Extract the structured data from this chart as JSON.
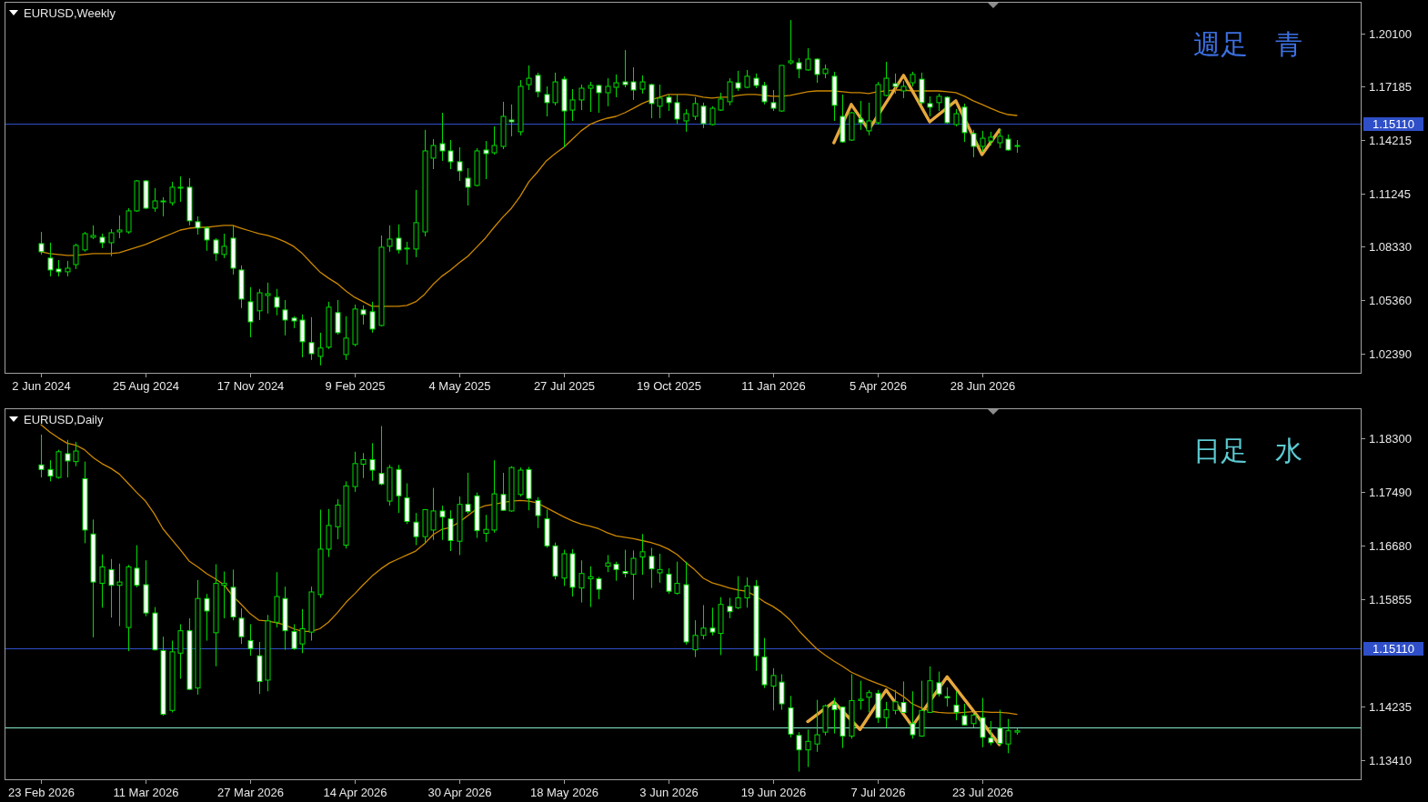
{
  "chart_data": [
    {
      "type": "candlestick",
      "title": "EURUSD,Weekly",
      "categories": [
        "2 Jun 2024",
        null,
        null,
        null,
        null,
        null,
        null,
        null,
        null,
        null,
        null,
        null,
        "25 Aug 2024",
        null,
        null,
        null,
        null,
        null,
        null,
        null,
        null,
        null,
        null,
        null,
        "17 Nov 2024",
        null,
        null,
        null,
        null,
        null,
        null,
        null,
        null,
        null,
        null,
        null,
        "9 Feb 2025",
        null,
        null,
        null,
        null,
        null,
        null,
        null,
        null,
        null,
        null,
        null,
        "4 May 2025",
        null,
        null,
        null,
        null,
        null,
        null,
        null,
        null,
        null,
        null,
        null,
        "27 Jul 2025",
        null,
        null,
        null,
        null,
        null,
        null,
        null,
        null,
        null,
        null,
        null,
        "19 Oct 2025",
        null,
        null,
        null,
        null,
        null,
        null,
        null,
        null,
        null,
        null,
        null,
        "11 Jan 2026",
        null,
        null,
        null,
        null,
        null,
        null,
        null,
        null,
        null,
        null,
        null,
        "5 Apr 2026",
        null,
        null,
        null,
        null,
        null,
        null,
        null,
        null,
        null,
        null,
        null,
        "28 Jun 2026",
        null,
        null,
        null,
        null
      ],
      "ohlc": [
        [
          1.0848,
          1.0913,
          1.0788,
          1.0803
        ],
        [
          1.0768,
          1.0853,
          1.0667,
          1.0702
        ],
        [
          1.0707,
          1.0757,
          1.0667,
          1.0692
        ],
        [
          1.0692,
          1.0752,
          1.0667,
          1.0712
        ],
        [
          1.0732,
          1.0848,
          1.0707,
          1.0838
        ],
        [
          1.0813,
          1.0913,
          1.0803,
          1.0903
        ],
        [
          1.0883,
          1.0949,
          1.0873,
          1.0893
        ],
        [
          1.0883,
          1.0903,
          1.0823,
          1.0853
        ],
        [
          1.0853,
          1.0928,
          1.0778,
          1.0908
        ],
        [
          1.0913,
          1.1004,
          1.0878,
          1.0923
        ],
        [
          1.0913,
          1.1044,
          1.0903,
          1.1029
        ],
        [
          1.1029,
          1.12,
          1.1024,
          1.1195
        ],
        [
          1.1195,
          1.12,
          1.1039,
          1.1044
        ],
        [
          1.1044,
          1.1155,
          1.1024,
          1.1084
        ],
        [
          1.1079,
          1.1105,
          1.0999,
          1.1084
        ],
        [
          1.1074,
          1.119,
          1.1059,
          1.116
        ],
        [
          1.1155,
          1.122,
          1.1079,
          1.116
        ],
        [
          1.116,
          1.121,
          1.0949,
          1.0974
        ],
        [
          1.0969,
          1.0999,
          1.0898,
          1.0934
        ],
        [
          1.0934,
          1.0944,
          1.0808,
          1.0868
        ],
        [
          1.0868,
          1.0878,
          1.0752,
          1.0793
        ],
        [
          1.0788,
          1.0903,
          1.0768,
          1.0833
        ],
        [
          1.0878,
          1.0949,
          1.0677,
          1.0712
        ],
        [
          1.0702,
          1.0727,
          1.0491,
          1.0541
        ],
        [
          1.0526,
          1.0607,
          1.033,
          1.0415
        ],
        [
          1.0476,
          1.0597,
          1.0425,
          1.0576
        ],
        [
          1.0561,
          1.0632,
          1.0461,
          1.0571
        ],
        [
          1.0551,
          1.0597,
          1.0451,
          1.0496
        ],
        [
          1.0481,
          1.0536,
          1.034,
          1.0425
        ],
        [
          1.0436,
          1.0446,
          1.038,
          1.042
        ],
        [
          1.0425,
          1.0456,
          1.0219,
          1.0305
        ],
        [
          1.03,
          1.0441,
          1.0204,
          1.0239
        ],
        [
          1.0224,
          1.0355,
          1.0174,
          1.027
        ],
        [
          1.0275,
          1.0526,
          1.0265,
          1.0496
        ],
        [
          1.0466,
          1.0536,
          1.0345,
          1.0355
        ],
        [
          1.0234,
          1.0446,
          1.0204,
          1.0325
        ],
        [
          1.029,
          1.0511,
          1.028,
          1.0486
        ],
        [
          1.0481,
          1.0506,
          1.04,
          1.0456
        ],
        [
          1.0471,
          1.0526,
          1.0355,
          1.0375
        ],
        [
          1.0395,
          1.0893,
          1.039,
          1.0828
        ],
        [
          1.0833,
          1.0949,
          1.0803,
          1.0873
        ],
        [
          1.0878,
          1.0954,
          1.0793,
          1.0813
        ],
        [
          1.0823,
          1.0858,
          1.0732,
          1.0818
        ],
        [
          1.0818,
          1.1145,
          1.0773,
          1.0964
        ],
        [
          1.0913,
          1.1477,
          1.0888,
          1.1361
        ],
        [
          1.1321,
          1.1426,
          1.126,
          1.1391
        ],
        [
          1.1401,
          1.1572,
          1.1306,
          1.1361
        ],
        [
          1.1361,
          1.1421,
          1.126,
          1.1301
        ],
        [
          1.1301,
          1.1381,
          1.1195,
          1.125
        ],
        [
          1.121,
          1.1265,
          1.1059,
          1.116
        ],
        [
          1.117,
          1.1376,
          1.1165,
          1.1361
        ],
        [
          1.1366,
          1.1416,
          1.1205,
          1.1346
        ],
        [
          1.1351,
          1.1497,
          1.1341,
          1.1391
        ],
        [
          1.1386,
          1.1633,
          1.1371,
          1.1552
        ],
        [
          1.1532,
          1.1618,
          1.1442,
          1.1522
        ],
        [
          1.1467,
          1.1753,
          1.1447,
          1.1718
        ],
        [
          1.1728,
          1.1834,
          1.1698,
          1.1763
        ],
        [
          1.1779,
          1.1794,
          1.1658,
          1.1688
        ],
        [
          1.1673,
          1.1718,
          1.1552,
          1.1628
        ],
        [
          1.1628,
          1.1794,
          1.1613,
          1.1743
        ],
        [
          1.1758,
          1.1774,
          1.1381,
          1.1582
        ],
        [
          1.1587,
          1.1703,
          1.1527,
          1.1643
        ],
        [
          1.1643,
          1.1728,
          1.1587,
          1.1708
        ],
        [
          1.1708,
          1.1743,
          1.1577,
          1.1723
        ],
        [
          1.1723,
          1.1728,
          1.1572,
          1.1683
        ],
        [
          1.1683,
          1.1763,
          1.1608,
          1.1718
        ],
        [
          1.1713,
          1.1784,
          1.1658,
          1.1738
        ],
        [
          1.1743,
          1.1919,
          1.1713,
          1.1728
        ],
        [
          1.1743,
          1.1824,
          1.1643,
          1.1698
        ],
        [
          1.1703,
          1.1779,
          1.1678,
          1.1743
        ],
        [
          1.1728,
          1.1733,
          1.1542,
          1.1623
        ],
        [
          1.1608,
          1.1728,
          1.1542,
          1.1653
        ],
        [
          1.1658,
          1.1673,
          1.1582,
          1.1628
        ],
        [
          1.1628,
          1.1673,
          1.1512,
          1.1537
        ],
        [
          1.1527,
          1.1592,
          1.1467,
          1.1567
        ],
        [
          1.1552,
          1.1658,
          1.1532,
          1.1623
        ],
        [
          1.1608,
          1.1628,
          1.1487,
          1.1512
        ],
        [
          1.1507,
          1.1608,
          1.1502,
          1.1597
        ],
        [
          1.1587,
          1.1683,
          1.1582,
          1.1648
        ],
        [
          1.1633,
          1.1763,
          1.1613,
          1.1743
        ],
        [
          1.1738,
          1.1804,
          1.1693,
          1.1708
        ],
        [
          1.1713,
          1.1809,
          1.1708,
          1.1774
        ],
        [
          1.1763,
          1.1789,
          1.1708,
          1.1723
        ],
        [
          1.1723,
          1.1743,
          1.1618,
          1.1633
        ],
        [
          1.1628,
          1.1698,
          1.1582,
          1.1597
        ],
        [
          1.1582,
          1.1834,
          1.1577,
          1.1834
        ],
        [
          1.1849,
          1.2085,
          1.1839,
          1.1859
        ],
        [
          1.1849,
          1.1874,
          1.1763,
          1.1814
        ],
        [
          1.1809,
          1.1929,
          1.1804,
          1.1869
        ],
        [
          1.1869,
          1.1874,
          1.1738,
          1.1784
        ],
        [
          1.1789,
          1.1839,
          1.1763,
          1.1814
        ],
        [
          1.1774,
          1.1799,
          1.1527,
          1.1613
        ],
        [
          1.1552,
          1.1673,
          1.1406,
          1.1411
        ],
        [
          1.1421,
          1.1577,
          1.1416,
          1.1572
        ],
        [
          1.1537,
          1.1638,
          1.1477,
          1.1517
        ],
        [
          1.1472,
          1.1628,
          1.1447,
          1.1527
        ],
        [
          1.1517,
          1.1743,
          1.1507,
          1.1728
        ],
        [
          1.1668,
          1.1854,
          1.1663,
          1.1763
        ],
        [
          1.1733,
          1.1789,
          1.1678,
          1.1718
        ],
        [
          1.1693,
          1.1748,
          1.1653,
          1.1718
        ],
        [
          1.1738,
          1.1799,
          1.1718,
          1.1784
        ],
        [
          1.1758,
          1.1794,
          1.1618,
          1.1628
        ],
        [
          1.1623,
          1.1663,
          1.1552,
          1.1603
        ],
        [
          1.1628,
          1.1678,
          1.1582,
          1.1663
        ],
        [
          1.1658,
          1.1663,
          1.1512,
          1.1517
        ],
        [
          1.1507,
          1.1592,
          1.1497,
          1.1567
        ],
        [
          1.1603,
          1.1623,
          1.1411,
          1.1462
        ],
        [
          1.1457,
          1.1477,
          1.1326,
          1.1386
        ],
        [
          1.1386,
          1.1472,
          1.1356,
          1.1431
        ],
        [
          1.1416,
          1.1467,
          1.1391,
          1.1437
        ],
        [
          1.1406,
          1.1482,
          1.1376,
          1.1442
        ],
        [
          1.1426,
          1.1452,
          1.1361,
          1.1366
        ],
        [
          1.1391,
          1.1421,
          1.1351,
          1.1386
        ]
      ],
      "series": [
        {
          "type": "line",
          "color": "#cc8800",
          "values": [
            1.0803,
            1.0793,
            1.0788,
            1.0783,
            1.0783,
            1.0788,
            1.0793,
            1.0793,
            1.0793,
            1.0798,
            1.0813,
            1.0828,
            1.0843,
            1.0863,
            1.0883,
            1.0903,
            1.0923,
            1.0933,
            1.0938,
            1.0938,
            1.0944,
            1.0949,
            1.0949,
            1.0933,
            1.0918,
            1.0903,
            1.0893,
            1.0878,
            1.0858,
            1.0833,
            1.0793,
            1.0742,
            1.0692,
            1.0657,
            1.0627,
            1.0586,
            1.0551,
            1.0526,
            1.0501,
            1.0501,
            1.0501,
            1.0501,
            1.0506,
            1.0526,
            1.0566,
            1.0622,
            1.0667,
            1.0702,
            1.0742,
            1.0778,
            1.0828,
            1.0878,
            1.0938,
            1.0994,
            1.1044,
            1.111,
            1.119,
            1.1245,
            1.1306,
            1.1346,
            1.1381,
            1.1426,
            1.1472,
            1.1507,
            1.1527,
            1.1542,
            1.1552,
            1.1572,
            1.1597,
            1.1623,
            1.1643,
            1.1658,
            1.1673,
            1.1673,
            1.1673,
            1.1668,
            1.1658,
            1.1653,
            1.1658,
            1.1658,
            1.1668,
            1.1673,
            1.1673,
            1.1668,
            1.1663,
            1.1663,
            1.1668,
            1.1678,
            1.1688,
            1.1693,
            1.1693,
            1.1693,
            1.1688,
            1.1683,
            1.1683,
            1.1678,
            1.1688,
            1.1693,
            1.1698,
            1.1698,
            1.1693,
            1.1693,
            1.1693,
            1.1693,
            1.1688,
            1.1683,
            1.1663,
            1.1638,
            1.1618,
            1.1597,
            1.1577,
            1.1562,
            1.1557
          ]
        },
        {
          "type": "line",
          "color": "#e6a83c",
          "values": [
            null,
            null,
            null,
            null,
            null,
            null,
            null,
            null,
            null,
            null,
            null,
            null,
            null,
            null,
            null,
            null,
            null,
            null,
            null,
            null,
            null,
            null,
            null,
            null,
            null,
            null,
            null,
            null,
            null,
            null,
            null,
            null,
            null,
            null,
            null,
            null,
            null,
            null,
            null,
            null,
            null,
            null,
            null,
            null,
            null,
            null,
            null,
            null,
            null,
            null,
            null,
            null,
            null,
            null,
            null,
            null,
            null,
            null,
            null,
            null,
            null,
            null,
            null,
            null,
            null,
            null,
            null,
            null,
            null,
            null,
            null,
            null,
            null,
            null,
            null,
            null,
            null,
            null,
            null,
            null,
            null,
            null,
            null,
            null,
            null,
            null,
            null,
            null,
            null,
            null,
            null,
            1.1406,
            null,
            1.1618,
            null,
            1.1477,
            null,
            null,
            null,
            1.1779,
            null,
            null,
            1.1522,
            null,
            null,
            1.1638,
            null,
            null,
            1.1341,
            null,
            1.1477,
            null,
            null
          ]
        }
      ],
      "ylim": [
        1.0128,
        1.2186
      ],
      "yticks": [
        {
          "value": 1.201,
          "label": "1.20100"
        },
        {
          "value": 1.17185,
          "label": "1.17185"
        },
        {
          "value": 1.14215,
          "label": "1.14215"
        },
        {
          "value": 1.11245,
          "label": "1.11245"
        },
        {
          "value": 1.0833,
          "label": "1.08330"
        },
        {
          "value": 1.0536,
          "label": "1.05360"
        },
        {
          "value": 1.0239,
          "label": "1.02390"
        }
      ],
      "ref_lines": [
        {
          "axis": "y",
          "value": 1.1511,
          "label": "1.15110",
          "color": "#2f4fc8"
        }
      ],
      "annotations": [
        "週足　青"
      ]
    },
    {
      "type": "candlestick",
      "title": "EURUSD,Daily",
      "categories": [
        "23 Feb 2026",
        null,
        null,
        null,
        null,
        null,
        null,
        null,
        null,
        null,
        null,
        null,
        "11 Mar 2026",
        null,
        null,
        null,
        null,
        null,
        null,
        null,
        null,
        null,
        null,
        null,
        "27 Mar 2026",
        null,
        null,
        null,
        null,
        null,
        null,
        null,
        null,
        null,
        null,
        null,
        "14 Apr 2026",
        null,
        null,
        null,
        null,
        null,
        null,
        null,
        null,
        null,
        null,
        null,
        "30 Apr 2026",
        null,
        null,
        null,
        null,
        null,
        null,
        null,
        null,
        null,
        null,
        null,
        "18 May 2026",
        null,
        null,
        null,
        null,
        null,
        null,
        null,
        null,
        null,
        null,
        null,
        "3 Jun 2026",
        null,
        null,
        null,
        null,
        null,
        null,
        null,
        null,
        null,
        null,
        null,
        "19 Jun 2026",
        null,
        null,
        null,
        null,
        null,
        null,
        null,
        null,
        null,
        null,
        null,
        "7 Jul 2026",
        null,
        null,
        null,
        null,
        null,
        null,
        null,
        null,
        null,
        null,
        null,
        "23 Jul 2026",
        null,
        null,
        null,
        null
      ],
      "ohlc": [
        [
          1.179,
          1.1836,
          1.1771,
          1.1783
        ],
        [
          1.1783,
          1.1797,
          1.1765,
          1.1773
        ],
        [
          1.1771,
          1.1813,
          1.1769,
          1.181
        ],
        [
          1.1807,
          1.1828,
          1.1771,
          1.1796
        ],
        [
          1.1795,
          1.1825,
          1.1788,
          1.1811
        ],
        [
          1.1769,
          1.1795,
          1.1671,
          1.1691
        ],
        [
          1.1685,
          1.1707,
          1.1528,
          1.1612
        ],
        [
          1.161,
          1.1654,
          1.1573,
          1.1635
        ],
        [
          1.1631,
          1.1647,
          1.1558,
          1.1607
        ],
        [
          1.1607,
          1.164,
          1.1545,
          1.1612
        ],
        [
          1.1543,
          1.1638,
          1.1507,
          1.1635
        ],
        [
          1.1633,
          1.1668,
          1.1604,
          1.1607
        ],
        [
          1.1608,
          1.1645,
          1.156,
          1.1565
        ],
        [
          1.1565,
          1.1574,
          1.1508,
          1.1509
        ],
        [
          1.1508,
          1.1529,
          1.1409,
          1.1411
        ],
        [
          1.1417,
          1.1523,
          1.1414,
          1.1506
        ],
        [
          1.1504,
          1.1548,
          1.1465,
          1.1538
        ],
        [
          1.1538,
          1.1557,
          1.1448,
          1.1449
        ],
        [
          1.1451,
          1.1615,
          1.1441,
          1.1587
        ],
        [
          1.1587,
          1.1594,
          1.1523,
          1.1568
        ],
        [
          1.1535,
          1.1639,
          1.1484,
          1.161
        ],
        [
          1.1607,
          1.1628,
          1.1557,
          1.161
        ],
        [
          1.1604,
          1.1631,
          1.1554,
          1.1559
        ],
        [
          1.1557,
          1.1572,
          1.1518,
          1.1529
        ],
        [
          1.1523,
          1.1548,
          1.15,
          1.1511
        ],
        [
          1.15,
          1.1521,
          1.1442,
          1.1461
        ],
        [
          1.1463,
          1.1562,
          1.1446,
          1.1553
        ],
        [
          1.1551,
          1.1627,
          1.1543,
          1.159
        ],
        [
          1.1587,
          1.1605,
          1.1509,
          1.1538
        ],
        [
          1.1537,
          1.1548,
          1.1509,
          1.1511
        ],
        [
          1.1518,
          1.1571,
          1.1504,
          1.1541
        ],
        [
          1.1536,
          1.1605,
          1.1523,
          1.1597
        ],
        [
          1.1593,
          1.1722,
          1.1588,
          1.1662
        ],
        [
          1.1662,
          1.1723,
          1.165,
          1.1698
        ],
        [
          1.1696,
          1.1738,
          1.1677,
          1.1729
        ],
        [
          1.1668,
          1.1765,
          1.1663,
          1.1758
        ],
        [
          1.1757,
          1.181,
          1.1749,
          1.1792
        ],
        [
          1.1791,
          1.1808,
          1.177,
          1.1798
        ],
        [
          1.1798,
          1.1823,
          1.1766,
          1.1782
        ],
        [
          1.1777,
          1.1849,
          1.1759,
          1.1761
        ],
        [
          1.1735,
          1.179,
          1.1728,
          1.1786
        ],
        [
          1.1783,
          1.179,
          1.1717,
          1.1743
        ],
        [
          1.174,
          1.1762,
          1.17,
          1.1704
        ],
        [
          1.1703,
          1.1717,
          1.1668,
          1.1681
        ],
        [
          1.1681,
          1.1722,
          1.167,
          1.1722
        ],
        [
          1.1691,
          1.1755,
          1.1676,
          1.172
        ],
        [
          1.172,
          1.1728,
          1.1676,
          1.1711
        ],
        [
          1.1708,
          1.1721,
          1.1659,
          1.1675
        ],
        [
          1.1674,
          1.1742,
          1.1653,
          1.173
        ],
        [
          1.173,
          1.1778,
          1.1716,
          1.1719
        ],
        [
          1.1743,
          1.1748,
          1.1679,
          1.169
        ],
        [
          1.1686,
          1.1714,
          1.1673,
          1.1692
        ],
        [
          1.1691,
          1.1797,
          1.1687,
          1.1746
        ],
        [
          1.1745,
          1.1778,
          1.172,
          1.1721
        ],
        [
          1.172,
          1.1788,
          1.1719,
          1.1786
        ],
        [
          1.1745,
          1.1786,
          1.1742,
          1.1782
        ],
        [
          1.1783,
          1.1787,
          1.1721,
          1.1739
        ],
        [
          1.1736,
          1.1741,
          1.1694,
          1.1713
        ],
        [
          1.1708,
          1.1722,
          1.1664,
          1.1667
        ],
        [
          1.1667,
          1.1672,
          1.1616,
          1.1621
        ],
        [
          1.1618,
          1.1661,
          1.1606,
          1.1655
        ],
        [
          1.1655,
          1.1662,
          1.159,
          1.1604
        ],
        [
          1.1603,
          1.1645,
          1.1581,
          1.1625
        ],
        [
          1.1617,
          1.1636,
          1.1574,
          1.162
        ],
        [
          1.1617,
          1.162,
          1.1586,
          1.1601
        ],
        [
          1.1636,
          1.1653,
          1.1627,
          1.1641
        ],
        [
          1.1639,
          1.1643,
          1.1614,
          1.1631
        ],
        [
          1.1628,
          1.1661,
          1.1619,
          1.1625
        ],
        [
          1.1624,
          1.166,
          1.1585,
          1.1648
        ],
        [
          1.165,
          1.1685,
          1.1623,
          1.1658
        ],
        [
          1.1651,
          1.1664,
          1.1603,
          1.1632
        ],
        [
          1.1626,
          1.1655,
          1.1611,
          1.1631
        ],
        [
          1.1624,
          1.1633,
          1.1594,
          1.1598
        ],
        [
          1.1595,
          1.1643,
          1.1593,
          1.161
        ],
        [
          1.1608,
          1.1643,
          1.1517,
          1.1521
        ],
        [
          1.1509,
          1.1554,
          1.1498,
          1.1531
        ],
        [
          1.1531,
          1.1577,
          1.1525,
          1.1542
        ],
        [
          1.1542,
          1.1573,
          1.1531,
          1.1536
        ],
        [
          1.1534,
          1.1589,
          1.1501,
          1.1578
        ],
        [
          1.1575,
          1.1588,
          1.1557,
          1.1567
        ],
        [
          1.1573,
          1.1621,
          1.1571,
          1.1588
        ],
        [
          1.1588,
          1.1619,
          1.1573,
          1.1606
        ],
        [
          1.1606,
          1.1615,
          1.1477,
          1.15
        ],
        [
          1.1498,
          1.1527,
          1.1451,
          1.1456
        ],
        [
          1.1454,
          1.1481,
          1.1417,
          1.147
        ],
        [
          1.146,
          1.1472,
          1.1418,
          1.1427
        ],
        [
          1.1421,
          1.1439,
          1.1376,
          1.1381
        ],
        [
          1.1379,
          1.1384,
          1.1324,
          1.1357
        ],
        [
          1.1357,
          1.1388,
          1.1331,
          1.137
        ],
        [
          1.1366,
          1.1433,
          1.1354,
          1.138
        ],
        [
          1.1384,
          1.1426,
          1.1379,
          1.1424
        ],
        [
          1.1426,
          1.1436,
          1.1382,
          1.1418
        ],
        [
          1.1422,
          1.1423,
          1.136,
          1.1378
        ],
        [
          1.1378,
          1.1472,
          1.1374,
          1.1432
        ],
        [
          1.1432,
          1.1462,
          1.1418,
          1.1434
        ],
        [
          1.1437,
          1.1448,
          1.1414,
          1.1444
        ],
        [
          1.1443,
          1.1448,
          1.1398,
          1.1406
        ],
        [
          1.1406,
          1.143,
          1.1391,
          1.1418
        ],
        [
          1.1417,
          1.1448,
          1.1411,
          1.143
        ],
        [
          1.1429,
          1.1461,
          1.1413,
          1.1414
        ],
        [
          1.1397,
          1.1446,
          1.1374,
          1.138
        ],
        [
          1.1378,
          1.1462,
          1.1377,
          1.1417
        ],
        [
          1.1414,
          1.1484,
          1.1413,
          1.1462
        ],
        [
          1.1459,
          1.1476,
          1.1438,
          1.1442
        ],
        [
          1.1438,
          1.1452,
          1.1423,
          1.1436
        ],
        [
          1.1425,
          1.1446,
          1.1402,
          1.1414
        ],
        [
          1.1409,
          1.1427,
          1.1394,
          1.1395
        ],
        [
          1.1397,
          1.1415,
          1.1391,
          1.141
        ],
        [
          1.1406,
          1.1436,
          1.1361,
          1.1376
        ],
        [
          1.1375,
          1.1401,
          1.1364,
          1.1368
        ],
        [
          1.139,
          1.1418,
          1.1364,
          1.1367
        ],
        [
          1.1366,
          1.1404,
          1.1352,
          1.1386
        ],
        [
          1.1384,
          1.139,
          1.138,
          1.1386
        ]
      ],
      "series": [
        {
          "type": "line",
          "color": "#cc8800",
          "values": [
            1.1851,
            1.184,
            1.1831,
            1.1823,
            1.182,
            1.1813,
            1.1801,
            1.1792,
            1.1785,
            1.1776,
            1.1762,
            1.1748,
            1.1735,
            1.1716,
            1.1693,
            1.1677,
            1.1661,
            1.1644,
            1.1635,
            1.1625,
            1.1617,
            1.1608,
            1.1591,
            1.1578,
            1.1564,
            1.1554,
            1.1553,
            1.155,
            1.1547,
            1.1541,
            1.1537,
            1.1537,
            1.1541,
            1.1551,
            1.1565,
            1.1581,
            1.1594,
            1.1608,
            1.1621,
            1.1632,
            1.1641,
            1.1647,
            1.1653,
            1.1659,
            1.167,
            1.1684,
            1.1692,
            1.1695,
            1.1703,
            1.1713,
            1.1723,
            1.1728,
            1.173,
            1.1733,
            1.1735,
            1.1736,
            1.1735,
            1.1732,
            1.1725,
            1.1718,
            1.1711,
            1.1705,
            1.17,
            1.1697,
            1.1693,
            1.1687,
            1.1682,
            1.168,
            1.1678,
            1.1675,
            1.1672,
            1.1668,
            1.1662,
            1.1654,
            1.1642,
            1.1631,
            1.1618,
            1.1611,
            1.1607,
            1.1603,
            1.16,
            1.1598,
            1.1591,
            1.1582,
            1.1575,
            1.1566,
            1.1554,
            1.1538,
            1.1524,
            1.1511,
            1.1501,
            1.1492,
            1.1484,
            1.1475,
            1.1469,
            1.1463,
            1.1458,
            1.1453,
            1.1446,
            1.1438,
            1.1427,
            1.1421,
            1.1416,
            1.1414,
            1.1413,
            1.1413,
            1.1414,
            1.1415,
            1.1415,
            1.1414,
            1.1414,
            1.1413,
            1.1411
          ]
        },
        {
          "type": "line",
          "color": "#e6a83c",
          "values": [
            null,
            null,
            null,
            null,
            null,
            null,
            null,
            null,
            null,
            null,
            null,
            null,
            null,
            null,
            null,
            null,
            null,
            null,
            null,
            null,
            null,
            null,
            null,
            null,
            null,
            null,
            null,
            null,
            null,
            null,
            null,
            null,
            null,
            null,
            null,
            null,
            null,
            null,
            null,
            null,
            null,
            null,
            null,
            null,
            null,
            null,
            null,
            null,
            null,
            null,
            null,
            null,
            null,
            null,
            null,
            null,
            null,
            null,
            null,
            null,
            null,
            null,
            null,
            null,
            null,
            null,
            null,
            null,
            null,
            null,
            null,
            null,
            null,
            null,
            null,
            null,
            null,
            null,
            null,
            null,
            null,
            null,
            null,
            null,
            null,
            null,
            null,
            null,
            1.14,
            null,
            null,
            1.143,
            null,
            null,
            1.1388,
            null,
            null,
            1.1448,
            null,
            null,
            1.1393,
            null,
            null,
            null,
            1.1468,
            null,
            null,
            null,
            null,
            null,
            1.1365,
            null,
            null
          ]
        }
      ],
      "ylim": [
        1.1311,
        1.1876
      ],
      "yticks": [
        {
          "value": 1.183,
          "label": "1.18300"
        },
        {
          "value": 1.1749,
          "label": "1.17490"
        },
        {
          "value": 1.1668,
          "label": "1.16680"
        },
        {
          "value": 1.15855,
          "label": "1.15855"
        },
        {
          "value": 1.14235,
          "label": "1.14235"
        },
        {
          "value": 1.1341,
          "label": "1.13410"
        }
      ],
      "ref_lines": [
        {
          "axis": "y",
          "value": 1.1511,
          "label": "1.15110",
          "color": "#2f4fc8"
        },
        {
          "axis": "y",
          "value": 1.1391,
          "color": "#86e8c8"
        }
      ],
      "annotations": [
        "日足　水"
      ]
    }
  ]
}
